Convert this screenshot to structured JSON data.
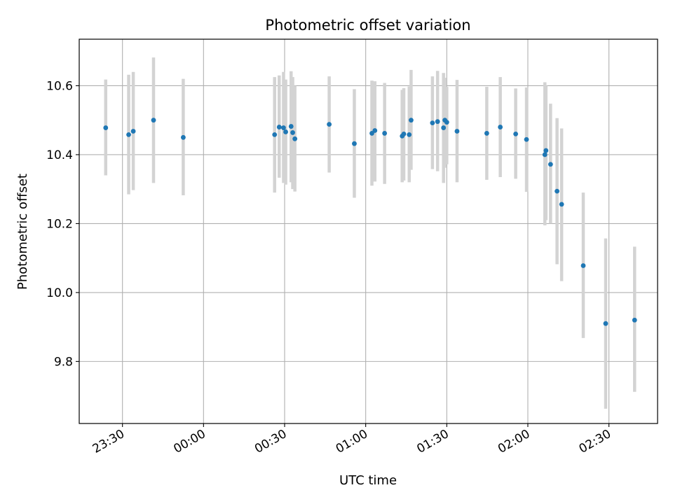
{
  "chart_data": {
    "type": "scatter",
    "title": "Photometric offset variation",
    "xlabel": "UTC time",
    "ylabel": "Photometric offset",
    "grid": true,
    "colors": {
      "point": "#1f77b4",
      "errorbar": "#d3d3d3",
      "grid": "#b0b0b0",
      "axis": "#000000"
    },
    "x_unit": "minutes relative to 00:00 UTC",
    "xlim": [
      -46,
      168
    ],
    "ylim": [
      9.62,
      10.735
    ],
    "x_ticks": [
      {
        "value": -30,
        "label": "23:30"
      },
      {
        "value": 0,
        "label": "00:00"
      },
      {
        "value": 30,
        "label": "00:30"
      },
      {
        "value": 60,
        "label": "01:00"
      },
      {
        "value": 90,
        "label": "01:30"
      },
      {
        "value": 120,
        "label": "02:00"
      },
      {
        "value": 150,
        "label": "02:30"
      }
    ],
    "y_ticks": [
      {
        "value": 9.8,
        "label": "9.8"
      },
      {
        "value": 10.0,
        "label": "10.0"
      },
      {
        "value": 10.2,
        "label": "10.2"
      },
      {
        "value": 10.4,
        "label": "10.4"
      },
      {
        "value": 10.6,
        "label": "10.6"
      }
    ],
    "series": [
      {
        "name": "Photometric offset",
        "points": [
          {
            "t": -36.2,
            "y": 10.478,
            "lo": 10.34,
            "hi": 10.618
          },
          {
            "t": -27.7,
            "y": 10.458,
            "lo": 10.285,
            "hi": 10.632
          },
          {
            "t": -26.0,
            "y": 10.468,
            "lo": 10.297,
            "hi": 10.64
          },
          {
            "t": -18.5,
            "y": 10.5,
            "lo": 10.318,
            "hi": 10.682
          },
          {
            "t": -7.5,
            "y": 10.45,
            "lo": 10.282,
            "hi": 10.62
          },
          {
            "t": 26.3,
            "y": 10.458,
            "lo": 10.29,
            "hi": 10.625
          },
          {
            "t": 28.0,
            "y": 10.48,
            "lo": 10.333,
            "hi": 10.63
          },
          {
            "t": 29.6,
            "y": 10.478,
            "lo": 10.318,
            "hi": 10.64
          },
          {
            "t": 30.4,
            "y": 10.466,
            "lo": 10.313,
            "hi": 10.618
          },
          {
            "t": 32.4,
            "y": 10.482,
            "lo": 10.32,
            "hi": 10.642
          },
          {
            "t": 33.0,
            "y": 10.464,
            "lo": 10.3,
            "hi": 10.625
          },
          {
            "t": 33.8,
            "y": 10.446,
            "lo": 10.293,
            "hi": 10.6
          },
          {
            "t": 46.5,
            "y": 10.488,
            "lo": 10.348,
            "hi": 10.627
          },
          {
            "t": 55.8,
            "y": 10.432,
            "lo": 10.275,
            "hi": 10.59
          },
          {
            "t": 62.3,
            "y": 10.462,
            "lo": 10.31,
            "hi": 10.615
          },
          {
            "t": 63.4,
            "y": 10.47,
            "lo": 10.322,
            "hi": 10.613
          },
          {
            "t": 67.0,
            "y": 10.462,
            "lo": 10.315,
            "hi": 10.608
          },
          {
            "t": 73.5,
            "y": 10.454,
            "lo": 10.32,
            "hi": 10.588
          },
          {
            "t": 74.1,
            "y": 10.46,
            "lo": 10.325,
            "hi": 10.593
          },
          {
            "t": 76.1,
            "y": 10.458,
            "lo": 10.32,
            "hi": 10.598
          },
          {
            "t": 76.8,
            "y": 10.5,
            "lo": 10.356,
            "hi": 10.646
          },
          {
            "t": 84.7,
            "y": 10.492,
            "lo": 10.358,
            "hi": 10.627
          },
          {
            "t": 86.6,
            "y": 10.496,
            "lo": 10.352,
            "hi": 10.643
          },
          {
            "t": 88.8,
            "y": 10.478,
            "lo": 10.318,
            "hi": 10.637
          },
          {
            "t": 89.3,
            "y": 10.5,
            "lo": 10.362,
            "hi": 10.623
          },
          {
            "t": 90.0,
            "y": 10.494,
            "lo": 10.372,
            "hi": 10.597
          },
          {
            "t": 93.8,
            "y": 10.468,
            "lo": 10.32,
            "hi": 10.617
          },
          {
            "t": 104.8,
            "y": 10.462,
            "lo": 10.327,
            "hi": 10.597
          },
          {
            "t": 109.8,
            "y": 10.48,
            "lo": 10.335,
            "hi": 10.625
          },
          {
            "t": 115.5,
            "y": 10.46,
            "lo": 10.33,
            "hi": 10.592
          },
          {
            "t": 119.5,
            "y": 10.444,
            "lo": 10.292,
            "hi": 10.595
          },
          {
            "t": 126.3,
            "y": 10.4,
            "lo": 10.195,
            "hi": 10.61
          },
          {
            "t": 126.7,
            "y": 10.412,
            "lo": 10.21,
            "hi": 10.6
          },
          {
            "t": 128.4,
            "y": 10.372,
            "lo": 10.2,
            "hi": 10.548
          },
          {
            "t": 130.8,
            "y": 10.294,
            "lo": 10.082,
            "hi": 10.506
          },
          {
            "t": 132.5,
            "y": 10.256,
            "lo": 10.033,
            "hi": 10.476
          },
          {
            "t": 140.5,
            "y": 10.078,
            "lo": 9.868,
            "hi": 10.29
          },
          {
            "t": 148.8,
            "y": 9.91,
            "lo": 9.663,
            "hi": 10.157
          },
          {
            "t": 159.5,
            "y": 9.92,
            "lo": 9.712,
            "hi": 10.133
          }
        ]
      }
    ]
  }
}
